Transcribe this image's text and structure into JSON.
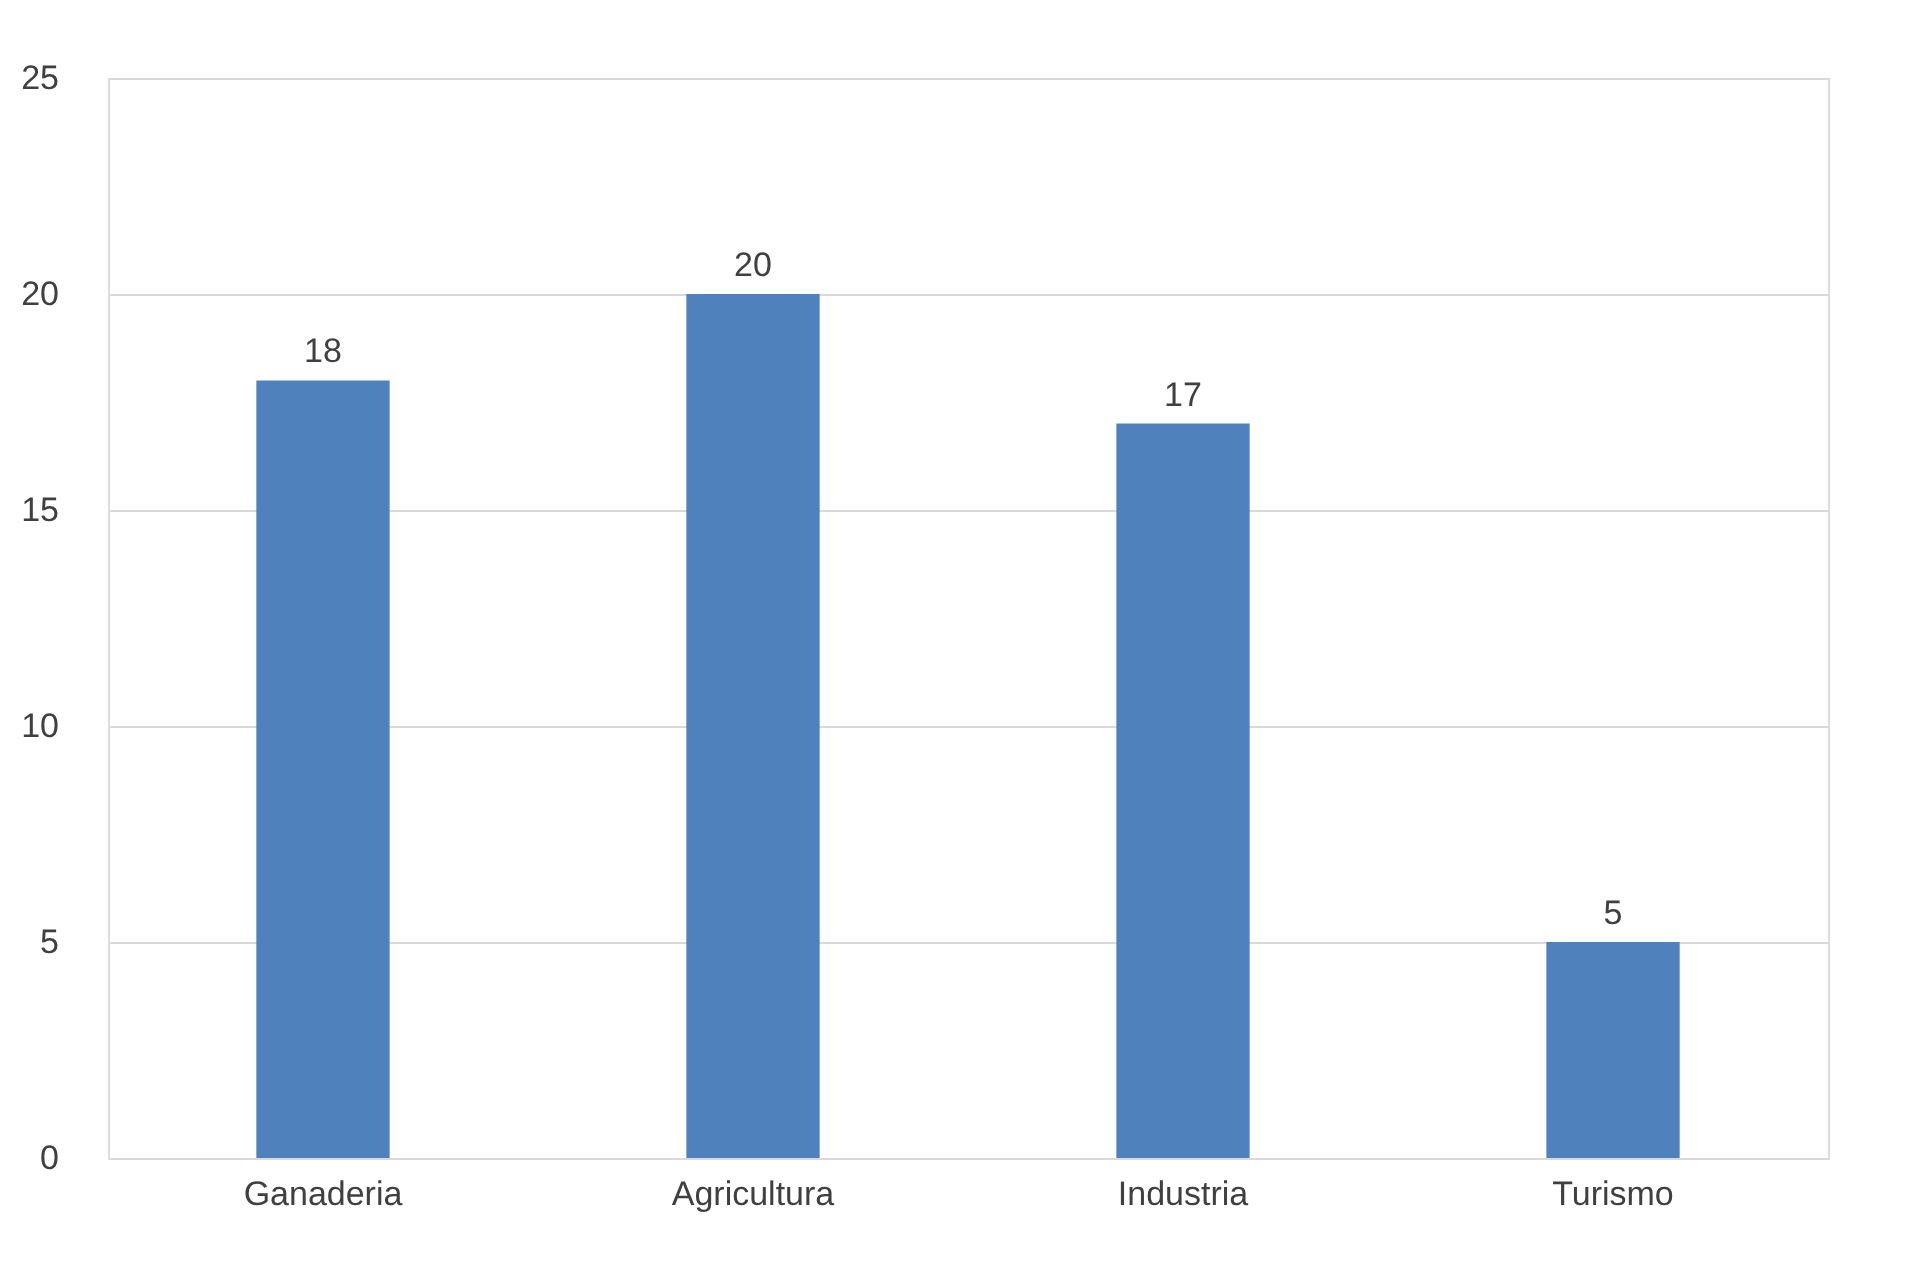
{
  "chart_data": {
    "type": "bar",
    "categories": [
      "Ganaderia",
      "Agricultura",
      "Industria",
      "Turismo"
    ],
    "values": [
      18,
      20,
      17,
      5
    ],
    "color": "#4f81bd",
    "ylim": [
      0,
      25
    ],
    "yticks": [
      0,
      5,
      10,
      15,
      20,
      25
    ],
    "grid": "y",
    "data_labels": true
  }
}
